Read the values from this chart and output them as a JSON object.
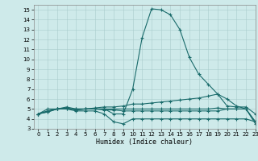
{
  "lines": [
    {
      "x": [
        0,
        1,
        2,
        3,
        4,
        5,
        6,
        7,
        8,
        9,
        10,
        11,
        12,
        13,
        14,
        15,
        16,
        17,
        18,
        19,
        20,
        21,
        22,
        23
      ],
      "y": [
        4.5,
        5.0,
        5.0,
        5.0,
        5.0,
        5.0,
        5.0,
        5.0,
        4.5,
        4.5,
        7.0,
        12.2,
        15.1,
        15.0,
        14.5,
        13.0,
        10.2,
        8.5,
        7.5,
        6.5,
        6.0,
        5.3,
        5.0,
        3.5
      ]
    },
    {
      "x": [
        0,
        1,
        2,
        3,
        4,
        5,
        6,
        7,
        8,
        9,
        10,
        11,
        12,
        13,
        14,
        15,
        16,
        17,
        18,
        19,
        20,
        21,
        22,
        23
      ],
      "y": [
        4.5,
        4.8,
        5.0,
        5.2,
        5.0,
        5.0,
        5.1,
        5.2,
        5.2,
        5.3,
        5.5,
        5.5,
        5.6,
        5.7,
        5.8,
        5.9,
        6.0,
        6.1,
        6.3,
        6.5,
        5.3,
        5.2,
        5.2,
        4.5
      ]
    },
    {
      "x": [
        0,
        1,
        2,
        3,
        4,
        5,
        6,
        7,
        8,
        9,
        10,
        11,
        12,
        13,
        14,
        15,
        16,
        17,
        18,
        19,
        20,
        21,
        22,
        23
      ],
      "y": [
        4.5,
        4.8,
        5.0,
        5.1,
        4.9,
        5.0,
        5.0,
        5.0,
        5.0,
        5.0,
        5.0,
        5.0,
        5.0,
        5.0,
        5.0,
        5.0,
        5.0,
        5.0,
        5.0,
        5.1,
        5.0,
        5.0,
        5.0,
        3.7
      ]
    },
    {
      "x": [
        0,
        1,
        2,
        3,
        4,
        5,
        6,
        7,
        8,
        9,
        10,
        11,
        12,
        13,
        14,
        15,
        16,
        17,
        18,
        19,
        20,
        21,
        22,
        23
      ],
      "y": [
        4.5,
        4.7,
        5.0,
        5.0,
        4.8,
        4.8,
        4.8,
        4.5,
        3.7,
        3.5,
        4.0,
        4.0,
        4.0,
        4.0,
        4.0,
        4.0,
        4.0,
        4.0,
        4.0,
        4.0,
        4.0,
        4.0,
        4.0,
        3.7
      ]
    },
    {
      "x": [
        0,
        1,
        2,
        3,
        4,
        5,
        6,
        7,
        8,
        9,
        10,
        11,
        12,
        13,
        14,
        15,
        16,
        17,
        18,
        19,
        20,
        21,
        22,
        23
      ],
      "y": [
        4.5,
        4.7,
        5.0,
        5.1,
        4.9,
        5.0,
        5.0,
        4.9,
        4.9,
        4.8,
        4.8,
        4.8,
        4.8,
        4.8,
        4.8,
        4.8,
        4.8,
        4.8,
        4.8,
        4.8,
        5.0,
        5.0,
        5.0,
        3.7
      ]
    }
  ],
  "line_color": "#1a6b6b",
  "marker": "+",
  "markersize": 3,
  "linewidth": 0.8,
  "bg_color": "#ceeaea",
  "grid_color": "#aacccc",
  "xlabel": "Humidex (Indice chaleur)",
  "xlabel_fontsize": 6,
  "xlim": [
    -0.5,
    23
  ],
  "ylim": [
    3,
    15.5
  ],
  "xticks": [
    0,
    1,
    2,
    3,
    4,
    5,
    6,
    7,
    8,
    9,
    10,
    11,
    12,
    13,
    14,
    15,
    16,
    17,
    18,
    19,
    20,
    21,
    22,
    23
  ],
  "yticks": [
    3,
    4,
    5,
    6,
    7,
    8,
    9,
    10,
    11,
    12,
    13,
    14,
    15
  ],
  "tick_fontsize": 5
}
